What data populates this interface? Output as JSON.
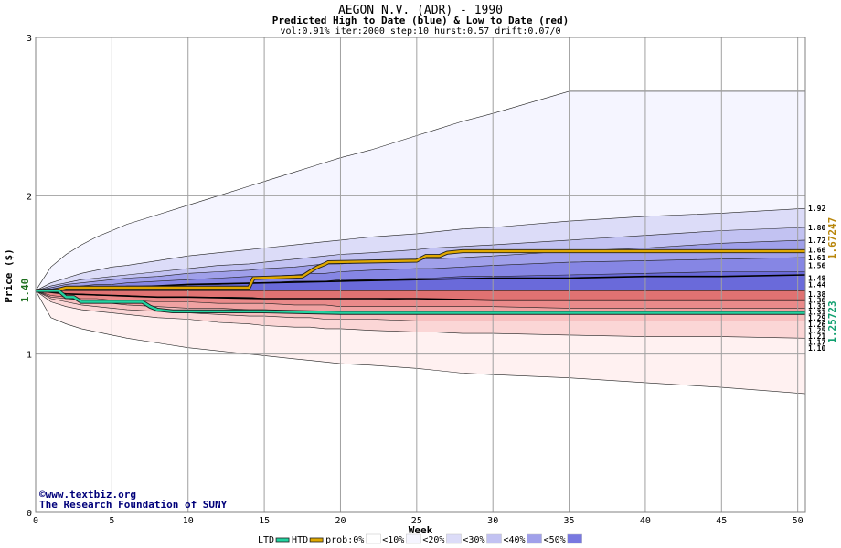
{
  "chart_data": {
    "type": "area",
    "title": "AEGON N.V. (ADR) - 1990",
    "subtitle": "Predicted High to Date (blue) &  Low to Date (red)",
    "params": "vol:0.91% iter:2000 step:10 hurst:0.57 drift:0.07/0",
    "xlabel": "Week",
    "ylabel": "Price ($)",
    "xlim": [
      0,
      50.5
    ],
    "ylim": [
      0,
      3
    ],
    "x_ticks": [
      0,
      5,
      10,
      15,
      20,
      25,
      30,
      35,
      40,
      45,
      50
    ],
    "y_ticks": [
      0,
      1,
      2,
      3
    ],
    "grid": true,
    "start_price_label": "1.40",
    "start_price": 1.4,
    "x": [
      0,
      1,
      2,
      3,
      4,
      5,
      6,
      8,
      10,
      12,
      14,
      15,
      17,
      18,
      19,
      20,
      22,
      25,
      26,
      28,
      30,
      35,
      40,
      45,
      50.5
    ],
    "bands": [
      {
        "upper": [
          1.4,
          1.55,
          1.63,
          1.69,
          1.74,
          1.78,
          1.82,
          1.88,
          1.94,
          2.0,
          2.06,
          2.09,
          2.15,
          2.18,
          2.21,
          2.24,
          2.29,
          2.38,
          2.41,
          2.47,
          2.52,
          2.66,
          2.66,
          2.66,
          2.66
        ],
        "lower": [
          1.4,
          1.23,
          1.19,
          1.16,
          1.14,
          1.12,
          1.1,
          1.07,
          1.04,
          1.02,
          1.0,
          0.99,
          0.97,
          0.96,
          0.95,
          0.94,
          0.93,
          0.91,
          0.9,
          0.88,
          0.87,
          0.85,
          0.82,
          0.79,
          0.75
        ]
      },
      {
        "upper": [
          1.4,
          1.45,
          1.48,
          1.51,
          1.53,
          1.55,
          1.56,
          1.59,
          1.62,
          1.64,
          1.66,
          1.67,
          1.69,
          1.7,
          1.71,
          1.72,
          1.74,
          1.76,
          1.77,
          1.79,
          1.8,
          1.84,
          1.87,
          1.89,
          1.92
        ],
        "lower": [
          1.4,
          1.33,
          1.3,
          1.28,
          1.27,
          1.26,
          1.25,
          1.23,
          1.22,
          1.2,
          1.19,
          1.18,
          1.17,
          1.17,
          1.16,
          1.16,
          1.15,
          1.14,
          1.14,
          1.13,
          1.13,
          1.12,
          1.11,
          1.11,
          1.1
        ]
      },
      {
        "upper": [
          1.4,
          1.43,
          1.45,
          1.47,
          1.48,
          1.49,
          1.5,
          1.52,
          1.54,
          1.56,
          1.57,
          1.58,
          1.6,
          1.61,
          1.62,
          1.63,
          1.64,
          1.66,
          1.67,
          1.68,
          1.69,
          1.72,
          1.75,
          1.78,
          1.8
        ],
        "lower": [
          1.4,
          1.35,
          1.33,
          1.31,
          1.3,
          1.29,
          1.28,
          1.27,
          1.26,
          1.25,
          1.24,
          1.24,
          1.23,
          1.23,
          1.22,
          1.22,
          1.22,
          1.21,
          1.21,
          1.21,
          1.21,
          1.21,
          1.21,
          1.21,
          1.21
        ]
      },
      {
        "upper": [
          1.4,
          1.42,
          1.44,
          1.45,
          1.46,
          1.47,
          1.48,
          1.49,
          1.51,
          1.52,
          1.53,
          1.54,
          1.55,
          1.56,
          1.57,
          1.57,
          1.58,
          1.6,
          1.6,
          1.61,
          1.62,
          1.65,
          1.67,
          1.7,
          1.72
        ],
        "lower": [
          1.4,
          1.36,
          1.35,
          1.34,
          1.33,
          1.32,
          1.31,
          1.3,
          1.29,
          1.29,
          1.28,
          1.28,
          1.27,
          1.27,
          1.27,
          1.26,
          1.26,
          1.26,
          1.26,
          1.26,
          1.26,
          1.26,
          1.26,
          1.26,
          1.26
        ]
      },
      {
        "upper": [
          1.4,
          1.41,
          1.42,
          1.43,
          1.44,
          1.44,
          1.45,
          1.46,
          1.47,
          1.48,
          1.49,
          1.49,
          1.5,
          1.51,
          1.51,
          1.52,
          1.53,
          1.54,
          1.54,
          1.55,
          1.56,
          1.58,
          1.59,
          1.6,
          1.61
        ],
        "lower": [
          1.4,
          1.37,
          1.36,
          1.35,
          1.35,
          1.34,
          1.34,
          1.33,
          1.33,
          1.32,
          1.32,
          1.32,
          1.31,
          1.31,
          1.31,
          1.3,
          1.3,
          1.3,
          1.3,
          1.3,
          1.3,
          1.29,
          1.29,
          1.29,
          1.29
        ]
      },
      {
        "upper": [
          1.4,
          1.41,
          1.41,
          1.42,
          1.42,
          1.42,
          1.43,
          1.43,
          1.44,
          1.44,
          1.45,
          1.45,
          1.46,
          1.46,
          1.46,
          1.47,
          1.47,
          1.48,
          1.48,
          1.49,
          1.49,
          1.5,
          1.51,
          1.52,
          1.52
        ],
        "lower": [
          1.4,
          1.39,
          1.38,
          1.38,
          1.37,
          1.37,
          1.37,
          1.36,
          1.36,
          1.36,
          1.36,
          1.35,
          1.35,
          1.35,
          1.35,
          1.35,
          1.35,
          1.34,
          1.34,
          1.34,
          1.34,
          1.34,
          1.34,
          1.34,
          1.34
        ]
      }
    ],
    "right_labels": [
      {
        "value": 1.92,
        "label": "1.92"
      },
      {
        "value": 1.8,
        "label": "1.80"
      },
      {
        "value": 1.72,
        "label": "1.72"
      },
      {
        "value": 1.66,
        "label": "1.66"
      },
      {
        "value": 1.61,
        "label": "1.61"
      },
      {
        "value": 1.56,
        "label": "1.56"
      },
      {
        "value": 1.48,
        "label": "1.48"
      },
      {
        "value": 1.44,
        "label": "1.44"
      },
      {
        "value": 1.38,
        "label": "1.38"
      },
      {
        "value": 1.36,
        "label": "1.36"
      },
      {
        "value": 1.33,
        "label": "1.33"
      },
      {
        "value": 1.31,
        "label": "1.31"
      },
      {
        "value": 1.29,
        "label": "1.29"
      },
      {
        "value": 1.26,
        "label": "1.26"
      },
      {
        "value": 1.25,
        "label": "1.25"
      },
      {
        "value": 1.21,
        "label": "1.21"
      },
      {
        "value": 1.17,
        "label": "1.17"
      },
      {
        "value": 1.1,
        "label": "1.10"
      }
    ],
    "median_lines": [
      {
        "x": [
          0,
          2,
          5,
          8,
          10,
          15,
          20,
          25,
          30,
          35,
          40,
          45,
          50.5
        ],
        "y": [
          1.4,
          1.41,
          1.42,
          1.43,
          1.44,
          1.45,
          1.46,
          1.47,
          1.48,
          1.48,
          1.49,
          1.49,
          1.5
        ]
      },
      {
        "x": [
          0,
          2,
          5,
          8,
          10,
          15,
          20,
          25,
          30,
          35,
          40,
          45,
          50.5
        ],
        "y": [
          1.4,
          1.38,
          1.37,
          1.36,
          1.36,
          1.35,
          1.35,
          1.35,
          1.34,
          1.34,
          1.34,
          1.34,
          1.34
        ]
      }
    ],
    "series": [
      {
        "name": "HTD",
        "color": "#e0a800",
        "x": [
          0,
          1,
          1.6,
          2,
          3,
          14,
          14.3,
          17.5,
          18.3,
          18.5,
          19,
          19.2,
          25,
          25.6,
          26.5,
          27,
          28,
          30,
          50.5
        ],
        "y": [
          1.4,
          1.4,
          1.41,
          1.42,
          1.42,
          1.42,
          1.48,
          1.49,
          1.54,
          1.55,
          1.57,
          1.58,
          1.59,
          1.62,
          1.62,
          1.64,
          1.65,
          1.65,
          1.65
        ],
        "value_label": "1.67247"
      },
      {
        "name": "LTD",
        "color": "#22d3a0",
        "x": [
          0,
          1.5,
          2,
          2.5,
          3,
          7,
          7.5,
          8,
          9,
          10,
          15,
          20,
          25,
          30,
          35,
          50.5
        ],
        "y": [
          1.4,
          1.4,
          1.36,
          1.36,
          1.33,
          1.33,
          1.3,
          1.28,
          1.27,
          1.27,
          1.27,
          1.26,
          1.26,
          1.26,
          1.26,
          1.26
        ],
        "value_label": "1.25723"
      }
    ],
    "watermark": [
      "©www.textbiz.org",
      "The Research Foundation of SUNY"
    ],
    "legend": {
      "placement": "bottom",
      "items": [
        {
          "label": "LTD",
          "kind": "line",
          "color": "#22d3a0"
        },
        {
          "label": "HTD",
          "kind": "line",
          "color": "#e0a800"
        },
        {
          "label": "prob:0%",
          "kind": "swatch",
          "color": "#ffffff"
        },
        {
          "label": "<10%",
          "kind": "swatch",
          "color": "#f5f5ff"
        },
        {
          "label": "<20%",
          "kind": "swatch",
          "color": "#dcdcf8"
        },
        {
          "label": "<30%",
          "kind": "swatch",
          "color": "#c2c2f2"
        },
        {
          "label": "<40%",
          "kind": "swatch",
          "color": "#a0a0ea"
        },
        {
          "label": "<50%",
          "kind": "swatch",
          "color": "#7878e0"
        }
      ]
    },
    "colors": {
      "band_blue": [
        "#f5f5ff",
        "#dcdcf8",
        "#c2c2f2",
        "#a0a0ea",
        "#8686e4",
        "#6a6ada"
      ],
      "band_red": [
        "#fff1f1",
        "#fbd6d6",
        "#f6c0c0",
        "#f0a2a2",
        "#ea8a8a",
        "#e07272"
      ],
      "grid": "#a0a0a0",
      "start_label": "#207020"
    }
  }
}
